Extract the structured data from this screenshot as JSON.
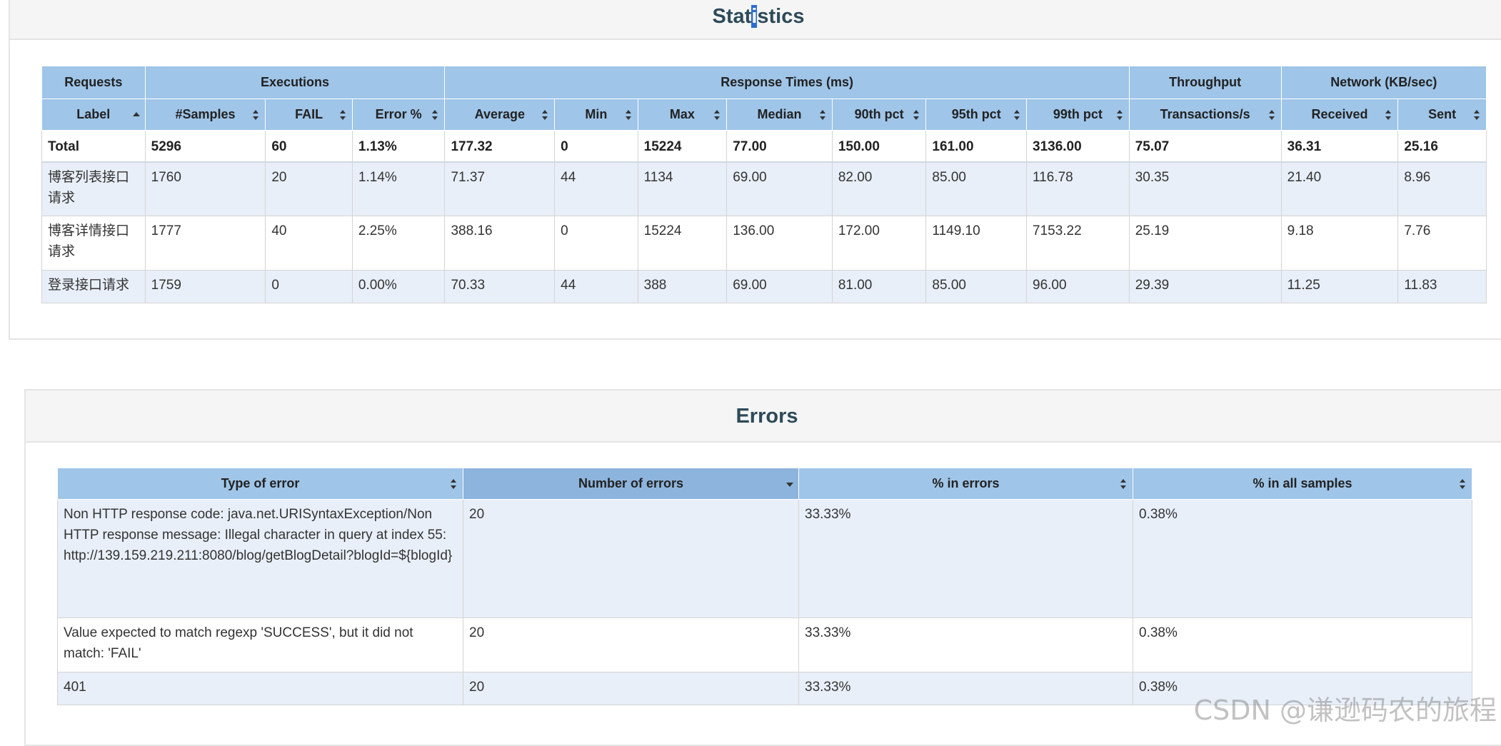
{
  "statistics": {
    "title_parts": [
      "Stat",
      "i",
      "stics"
    ],
    "groups": [
      "Requests",
      "Executions",
      "Response Times (ms)",
      "Throughput",
      "Network (KB/sec)"
    ],
    "columns": [
      "Label",
      "#Samples",
      "FAIL",
      "Error %",
      "Average",
      "Min",
      "Max",
      "Median",
      "90th pct",
      "95th pct",
      "99th pct",
      "Transactions/s",
      "Received",
      "Sent"
    ],
    "total": [
      "Total",
      "5296",
      "60",
      "1.13%",
      "177.32",
      "0",
      "15224",
      "77.00",
      "150.00",
      "161.00",
      "3136.00",
      "75.07",
      "36.31",
      "25.16"
    ],
    "rows": [
      [
        "博客列表接口请求",
        "1760",
        "20",
        "1.14%",
        "71.37",
        "44",
        "1134",
        "69.00",
        "82.00",
        "85.00",
        "116.78",
        "30.35",
        "21.40",
        "8.96"
      ],
      [
        "博客详情接口请求",
        "1777",
        "40",
        "2.25%",
        "388.16",
        "0",
        "15224",
        "136.00",
        "172.00",
        "1149.10",
        "7153.22",
        "25.19",
        "9.18",
        "7.76"
      ],
      [
        "登录接口请求",
        "1759",
        "0",
        "0.00%",
        "70.33",
        "44",
        "388",
        "69.00",
        "81.00",
        "85.00",
        "96.00",
        "29.39",
        "11.25",
        "11.83"
      ]
    ]
  },
  "errors": {
    "title": "Errors",
    "columns": [
      "Type of error",
      "Number of errors",
      "% in errors",
      "% in all samples"
    ],
    "rows": [
      [
        "Non HTTP response code: java.net.URISyntaxException/Non HTTP response message: Illegal character in query at index 55: http://139.159.219.211:8080/blog/getBlogDetail?blogId=${blogId}",
        "20",
        "33.33%",
        "0.38%"
      ],
      [
        "Value expected to match regexp 'SUCCESS', but it did not match: 'FAIL'",
        "20",
        "33.33%",
        "0.38%"
      ],
      [
        "401",
        "20",
        "33.33%",
        "0.38%"
      ]
    ]
  },
  "watermark": "CSDN @谦逊码农的旅程",
  "colors": {
    "header_bg": "#9fc5e8",
    "alt_row_bg": "#e8eff8",
    "title_color": "#2d4a58"
  },
  "icons": {
    "sort_both": "sort-arrows-icon",
    "sort_asc": "sort-ascending-icon",
    "sort_desc": "sort-descending-icon"
  }
}
